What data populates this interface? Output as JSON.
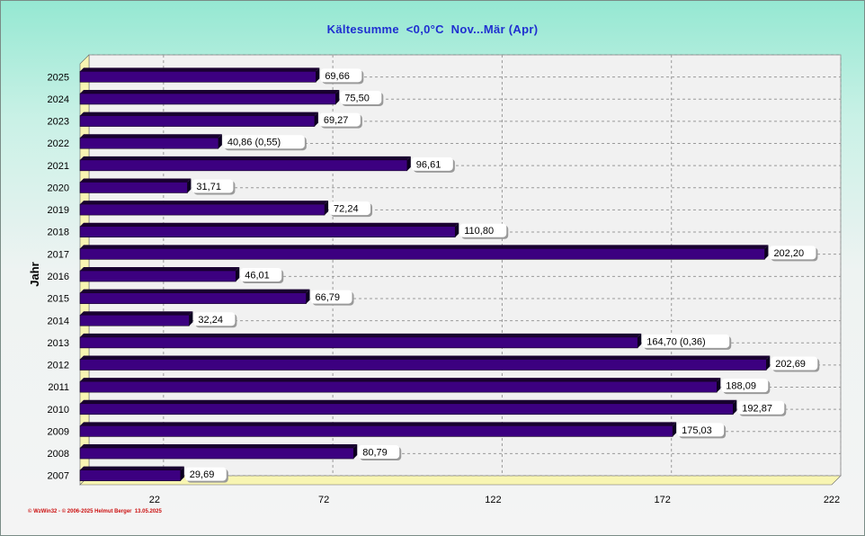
{
  "title": "Kältesumme  <0,0°C  Nov...Mär (Apr)",
  "credit": "© WzWin32 - © 2006-2025 Helmut Berger  13.05.2025",
  "colors": {
    "bar_front": "#3c0080",
    "bar_top": "#190030",
    "bar_side": "#0c0020",
    "plot_bg": "#f1f1f1",
    "floor": "#f8f5b2",
    "title": "#1f2fd0",
    "credit": "#cc1010"
  },
  "chart_data": {
    "type": "bar",
    "orientation": "horizontal",
    "title": "Kältesumme  <0,0°C  Nov...Mär (Apr)",
    "ylabel": "Jahr",
    "xlabel": "",
    "xlim": [
      0,
      222
    ],
    "xticks": [
      22,
      72,
      122,
      172,
      222
    ],
    "grid": true,
    "categories": [
      "2025",
      "2024",
      "2023",
      "2022",
      "2021",
      "2020",
      "2019",
      "2018",
      "2017",
      "2016",
      "2015",
      "2014",
      "2013",
      "2012",
      "2011",
      "2010",
      "2009",
      "2008",
      "2007"
    ],
    "values": [
      69.66,
      75.5,
      69.27,
      40.86,
      96.61,
      31.71,
      72.24,
      110.8,
      202.2,
      46.01,
      66.79,
      32.24,
      164.7,
      202.69,
      188.09,
      192.87,
      175.03,
      80.79,
      29.69
    ],
    "data_labels": [
      "69,66",
      "75,50",
      "69,27",
      "40,86 (0,55)",
      "96,61",
      "31,71",
      "72,24",
      "110,80",
      "202,20",
      "46,01",
      "66,79",
      "32,24",
      "164,70 (0,36)",
      "202,69",
      "188,09",
      "192,87",
      "175,03",
      "80,79",
      "29,69"
    ]
  }
}
